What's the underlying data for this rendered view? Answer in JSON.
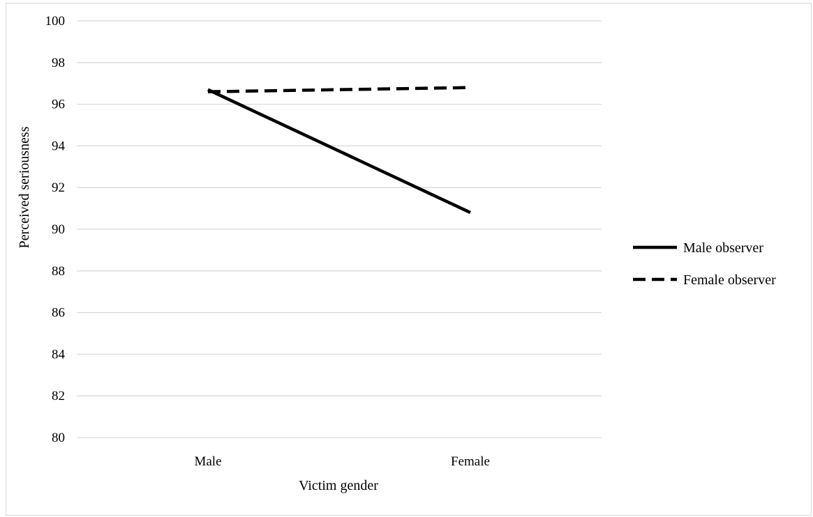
{
  "chart_data": {
    "type": "line",
    "title": "",
    "xlabel": "Victim gender",
    "ylabel": "Perceived seriousness",
    "categories": [
      "Male",
      "Female"
    ],
    "ylim": [
      80,
      100
    ],
    "yticks": [
      80,
      82,
      84,
      86,
      88,
      90,
      92,
      94,
      96,
      98,
      100
    ],
    "grid": true,
    "legend_position": "right",
    "series": [
      {
        "name": "Male observer",
        "values": [
          96.7,
          90.8
        ],
        "color": "#000000",
        "style": "solid"
      },
      {
        "name": "Female observer",
        "values": [
          96.6,
          96.8
        ],
        "color": "#000000",
        "style": "dashed"
      }
    ]
  }
}
